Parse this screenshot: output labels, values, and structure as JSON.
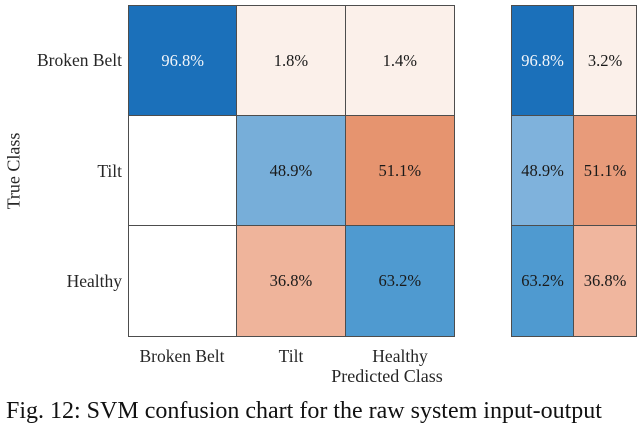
{
  "figure": {
    "y_label": "True Class",
    "x_label": "Predicted Class",
    "caption": "Fig. 12: SVM confusion chart for the raw system input-output"
  },
  "row_ticks": [
    "Broken Belt",
    "Tilt",
    "Healthy"
  ],
  "col_ticks": [
    "Broken Belt",
    "Tilt",
    "Healthy"
  ],
  "chart_data": {
    "type": "heatmap",
    "subtype": "confusion-matrix",
    "title": "",
    "xlabel": "Predicted Class",
    "ylabel": "True Class",
    "x_categories": [
      "Broken Belt",
      "Tilt",
      "Healthy"
    ],
    "y_categories": [
      "Broken Belt",
      "Tilt",
      "Healthy"
    ],
    "values_percent": [
      [
        96.8,
        1.8,
        1.4
      ],
      [
        null,
        48.9,
        51.1
      ],
      [
        null,
        36.8,
        63.2
      ]
    ],
    "row_summary": {
      "correct_rate_percent": [
        96.8,
        48.9,
        63.2
      ],
      "incorrect_rate_percent": [
        3.2,
        51.1,
        36.8
      ]
    },
    "legend_position": "none",
    "grid": true
  },
  "main_cells": [
    {
      "label": "96.8%",
      "bg": "#1b70ba",
      "fg": "#f2f5f9"
    },
    {
      "label": "1.8%",
      "bg": "#fbf0ea",
      "fg": "#1a1a1a"
    },
    {
      "label": "1.4%",
      "bg": "#fbf0ea",
      "fg": "#1a1a1a"
    },
    {
      "label": "",
      "bg": "#ffffff",
      "fg": "#1a1a1a"
    },
    {
      "label": "48.9%",
      "bg": "#77aed9",
      "fg": "#1a1a1a"
    },
    {
      "label": "51.1%",
      "bg": "#e6946f",
      "fg": "#1a1a1a"
    },
    {
      "label": "",
      "bg": "#ffffff",
      "fg": "#1a1a1a"
    },
    {
      "label": "36.8%",
      "bg": "#efb49b",
      "fg": "#1a1a1a"
    },
    {
      "label": "63.2%",
      "bg": "#4f9ad0",
      "fg": "#1a1a1a"
    }
  ],
  "panel_cells": [
    {
      "label": "96.8%",
      "bg": "#1b70ba",
      "fg": "#f2f5f9"
    },
    {
      "label": "3.2%",
      "bg": "#fbf0ea",
      "fg": "#1a1a1a"
    },
    {
      "label": "48.9%",
      "bg": "#7fb2dc",
      "fg": "#1a1a1a"
    },
    {
      "label": "51.1%",
      "bg": "#e89b7a",
      "fg": "#1a1a1a"
    },
    {
      "label": "63.2%",
      "bg": "#4f9ad0",
      "fg": "#1a1a1a"
    },
    {
      "label": "36.8%",
      "bg": "#f0b69e",
      "fg": "#1a1a1a"
    }
  ],
  "colors": {
    "diagonal_strong": "#1b70ba",
    "diagonal_mid": "#4f9ad0",
    "diagonal_light": "#77aed9",
    "offdiag_strong": "#e6946f",
    "offdiag_mid": "#efb49b",
    "offdiag_faint": "#fbf0ea",
    "grid_border": "#4d4d4d"
  }
}
